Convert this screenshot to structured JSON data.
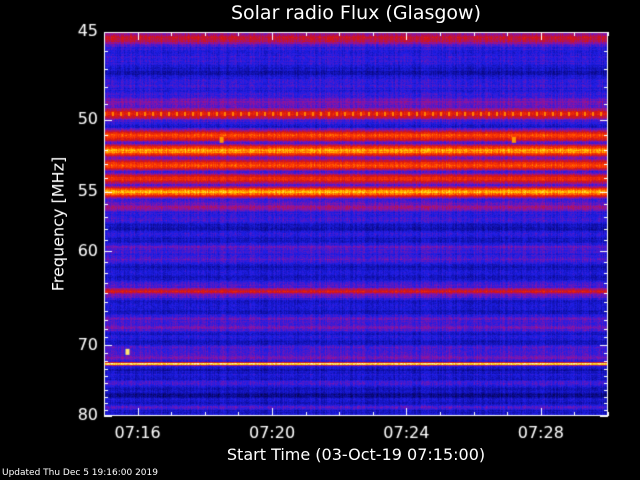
{
  "chart_data": {
    "type": "heatmap",
    "title": "Solar radio Flux (Glasgow)",
    "xlabel": "Start Time (03-Oct-19 07:15:00)",
    "ylabel": "Frequency [MHz]",
    "x_ticks": [
      "07:16",
      "07:20",
      "07:24",
      "07:28"
    ],
    "x_tick_minutes": [
      1,
      5,
      9,
      13
    ],
    "xlim_minutes": [
      0,
      15
    ],
    "y_ticks": [
      45,
      50,
      55,
      60,
      70,
      80
    ],
    "y_scale": "reciprocal",
    "ylim": [
      45,
      80
    ],
    "colormap": [
      "#000010",
      "#0a0a90",
      "#1e1ee6",
      "#8a14a6",
      "#d21414",
      "#ff3c00",
      "#ffd200",
      "#ffffff"
    ],
    "frequency_intensity": [
      {
        "mhz": 45.3,
        "level": 0.55
      },
      {
        "mhz": 49.6,
        "level": 0.62
      },
      {
        "mhz": 51.0,
        "level": 0.7
      },
      {
        "mhz": 52.0,
        "level": 0.82
      },
      {
        "mhz": 53.0,
        "level": 0.72
      },
      {
        "mhz": 54.0,
        "level": 0.66
      },
      {
        "mhz": 55.0,
        "level": 0.82
      },
      {
        "mhz": 56.2,
        "level": 0.45
      },
      {
        "mhz": 58.5,
        "level": 0.32
      },
      {
        "mhz": 63.8,
        "level": 0.58
      },
      {
        "mhz": 72.3,
        "level": 0.98
      }
    ],
    "events": [
      {
        "minute": 0.7,
        "mhz": 70.8,
        "level": 0.92
      },
      {
        "minute": 3.5,
        "mhz": 51.3,
        "level": 0.8
      },
      {
        "minute": 12.2,
        "mhz": 51.3,
        "level": 0.8
      }
    ]
  },
  "footer": "Updated Thu Dec  5 19:16:00 2019"
}
